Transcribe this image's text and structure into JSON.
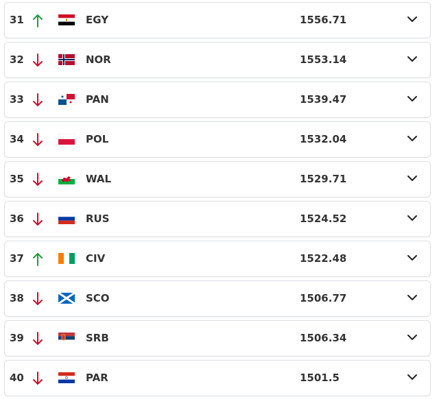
{
  "rows": [
    {
      "rank": 31,
      "team": "EGY",
      "rating": 1556.71
    },
    {
      "rank": 32,
      "team": "NOR",
      "rating": 1553.14
    },
    {
      "rank": 33,
      "team": "PAN",
      "rating": 1539.47
    },
    {
      "rank": 34,
      "team": "POL",
      "rating": 1532.04
    },
    {
      "rank": 35,
      "team": "WAL",
      "rating": 1529.71
    },
    {
      "rank": 36,
      "team": "RUS",
      "rating": 1524.52
    },
    {
      "rank": 37,
      "team": "CIV",
      "rating": 1522.48
    },
    {
      "rank": 38,
      "team": "SCO",
      "rating": 1506.77
    },
    {
      "rank": 39,
      "team": "SRB",
      "rating": 1506.34
    },
    {
      "rank": 40,
      "team": "PAR",
      "rating": 1501.5
    }
  ]
}
